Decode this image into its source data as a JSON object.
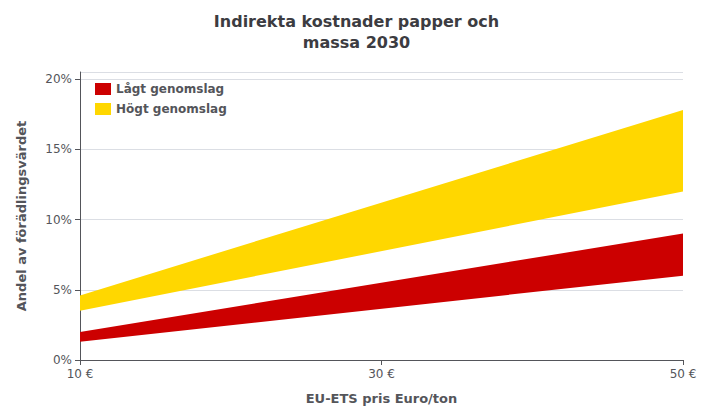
{
  "chart_data": {
    "type": "band",
    "title": "Indirekta kostnader papper och\nmassa 2030",
    "xlabel": "EU-ETS pris Euro/ton",
    "ylabel": "Andel av förädlingsvärdet",
    "x": [
      10,
      50
    ],
    "series": [
      {
        "name": "Lågt genomslag",
        "color": "#CC0000",
        "lower": [
          0.013,
          0.06
        ],
        "upper": [
          0.02,
          0.09
        ]
      },
      {
        "name": "Högt genomslag",
        "color": "#FFD700",
        "lower": [
          0.035,
          0.12
        ],
        "upper": [
          0.046,
          0.178
        ]
      }
    ],
    "xlim": [
      10,
      50
    ],
    "xticks": [
      {
        "value": 10,
        "label": "10 €"
      },
      {
        "value": 30,
        "label": "30 €"
      },
      {
        "value": 50,
        "label": "50 €"
      }
    ],
    "ylim": [
      0,
      0.205
    ],
    "yticks": [
      {
        "value": 0.0,
        "label": "0%"
      },
      {
        "value": 0.05,
        "label": "5%"
      },
      {
        "value": 0.1,
        "label": "10%"
      },
      {
        "value": 0.15,
        "label": "15%"
      },
      {
        "value": 0.2,
        "label": "20%"
      }
    ],
    "grid": true,
    "legend": "upper left"
  }
}
